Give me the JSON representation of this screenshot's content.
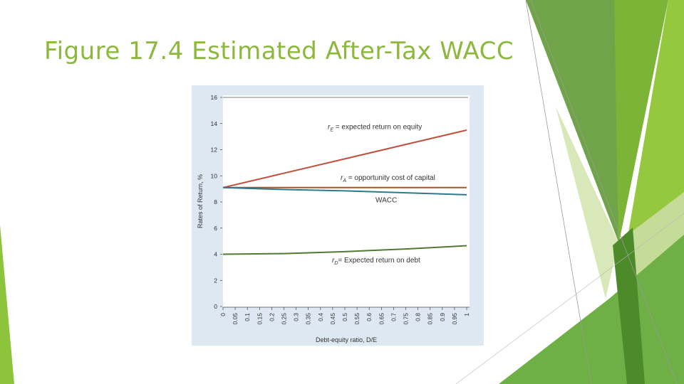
{
  "slide": {
    "title": "Figure 17.4 Estimated After-Tax WACC",
    "accent_color": "#8cb83c"
  },
  "chart_data": {
    "type": "line",
    "ylabel": "Rates of Return, %",
    "xlabel": "Debt-equity ratio, D/E",
    "ylim": [
      0,
      16
    ],
    "yticks": [
      0,
      2,
      4,
      6,
      8,
      10,
      12,
      14,
      16
    ],
    "xlim": [
      0,
      1
    ],
    "xticks": [
      "0",
      "0.05",
      "0.1",
      "0.15",
      "0.2",
      "0.25",
      "0.3",
      "0.35",
      "0.4",
      "0.45",
      "0.5",
      "0.55",
      "0.6",
      "0.65",
      "0.7",
      "0.75",
      "0.8",
      "0.85",
      "0.9",
      "0.95",
      "1"
    ],
    "grid": false,
    "series": [
      {
        "name": "rE = expected return on equity",
        "color": "#c0503c",
        "x": [
          0,
          0.25,
          0.5,
          0.75,
          1
        ],
        "y": [
          9.1,
          10.2,
          11.3,
          12.4,
          13.5
        ]
      },
      {
        "name": "rA = opportunity cost of capital",
        "color": "#a05a2c",
        "x": [
          0,
          0.25,
          0.5,
          0.75,
          1
        ],
        "y": [
          9.1,
          9.1,
          9.1,
          9.1,
          9.1
        ]
      },
      {
        "name": "WACC",
        "color": "#2f7a8a",
        "x": [
          0,
          0.25,
          0.5,
          0.75,
          1
        ],
        "y": [
          9.1,
          8.95,
          8.85,
          8.7,
          8.55
        ]
      },
      {
        "name": "rD = Expected return on debt",
        "color": "#4f7a32",
        "x": [
          0,
          0.25,
          0.5,
          0.75,
          1
        ],
        "y": [
          4.0,
          4.05,
          4.2,
          4.4,
          4.65
        ]
      }
    ],
    "annotations": [
      {
        "sub": "E",
        "text": " = expected return on equity"
      },
      {
        "sub": "A",
        "text": " = opportunity cost of capital"
      },
      {
        "sub": null,
        "text": "WACC"
      },
      {
        "sub": "D",
        "text": "= Expected return on debt"
      }
    ]
  }
}
